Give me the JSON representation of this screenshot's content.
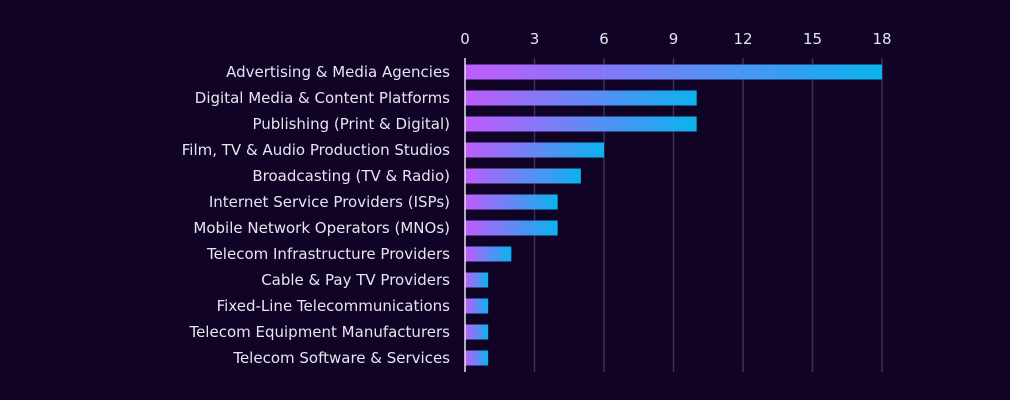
{
  "chart_data": {
    "type": "bar",
    "orientation": "horizontal",
    "title": "",
    "xlabel": "",
    "ylabel": "",
    "categories": [
      "Advertising & Media Agencies",
      "Digital Media & Content Platforms",
      "Publishing (Print & Digital)",
      "Film, TV & Audio Production Studios",
      "Broadcasting (TV & Radio)",
      "Internet Service Providers (ISPs)",
      "Mobile Network Operators (MNOs)",
      "Telecom Infrastructure Providers",
      "Cable & Pay TV Providers",
      "Fixed-Line Telecommunications",
      "Telecom Equipment Manufacturers",
      "Telecom Software & Services"
    ],
    "values": [
      18,
      10,
      10,
      6,
      5,
      4,
      4,
      2,
      1,
      1,
      1,
      1
    ],
    "xlim": [
      0,
      18
    ],
    "xticks": [
      0,
      3,
      6,
      9,
      12,
      15,
      18
    ],
    "tick_labels": [
      "0",
      "3",
      "6",
      "9",
      "12",
      "15",
      "18"
    ],
    "axis_position": "top",
    "grid": true,
    "legend": "none",
    "colors": {
      "background": "#100326",
      "gradient_start": "#c05cfc",
      "gradient_end": "#0bb3ee",
      "grid": "#3a3058",
      "axis": "#e8e4f0",
      "text": "#e8e4f0"
    }
  }
}
